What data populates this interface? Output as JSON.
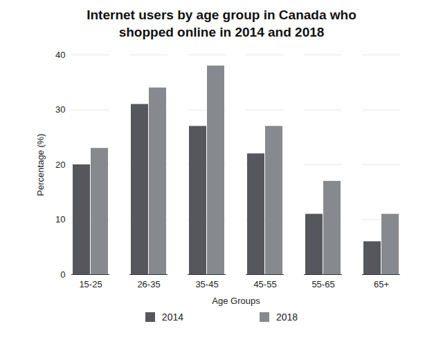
{
  "chart_data": {
    "type": "bar",
    "title": "Internet users by age group in Canada who shopped online in 2014 and 2018",
    "xlabel": "Age Groups",
    "ylabel": "Percentage (%)",
    "categories": [
      "15-25",
      "26-35",
      "35-45",
      "45-55",
      "55-65",
      "65+"
    ],
    "series": [
      {
        "name": "2014",
        "color": "#55575c",
        "values": [
          20,
          31,
          27,
          22,
          11,
          6
        ]
      },
      {
        "name": "2018",
        "color": "#86898e",
        "values": [
          23,
          34,
          38,
          27,
          17,
          11
        ]
      }
    ],
    "ylim": [
      0,
      40
    ],
    "yticks": [
      0,
      10,
      20,
      30,
      40
    ],
    "grid": true,
    "legend": "bottom"
  }
}
